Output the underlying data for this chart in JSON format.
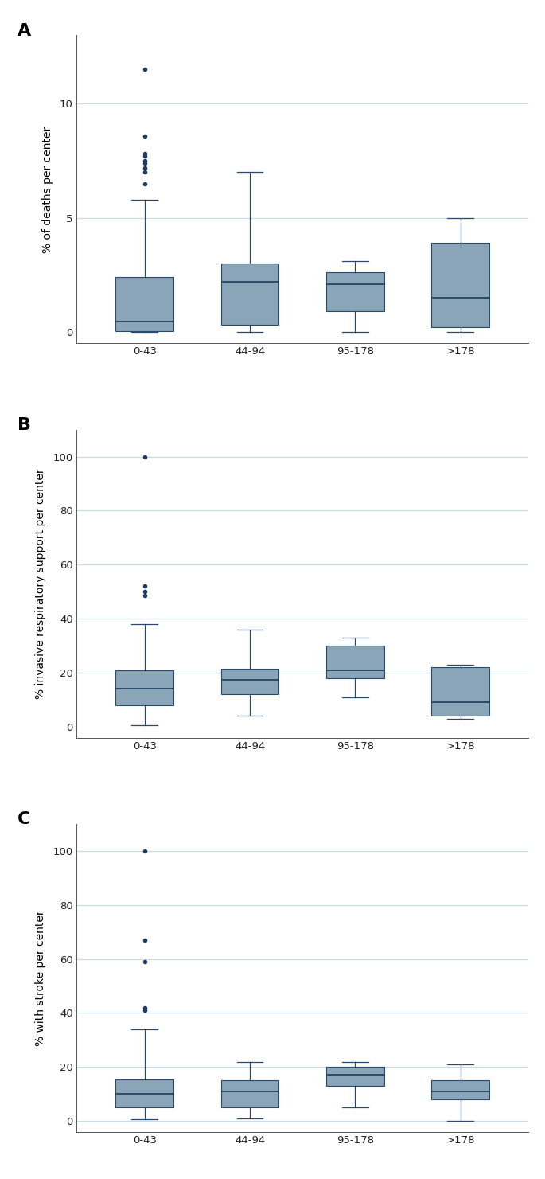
{
  "categories": [
    "0-43",
    "44-94",
    "95-178",
    ">178"
  ],
  "panel_labels": [
    "A",
    "B",
    "C"
  ],
  "ylabels": [
    "% of deaths per center",
    "% invasive respiratory support per center",
    "% with stroke per center"
  ],
  "box_color": "#8aa4b8",
  "box_edge_color": "#2a4a6a",
  "median_color": "#2a4a6a",
  "whisker_color": "#2a4a6a",
  "flier_color": "#1e3a5f",
  "grid_color": "#c8dce8",
  "panels": [
    {
      "ylim": [
        -0.5,
        13.0
      ],
      "yticks": [
        0,
        5,
        10
      ],
      "gridlines": [
        5,
        10
      ],
      "boxes": [
        {
          "q1": 0.05,
          "median": 0.45,
          "q3": 2.4,
          "whislo": 0.0,
          "whishi": 5.8,
          "fliers": [
            6.5,
            7.0,
            7.2,
            7.4,
            7.5,
            7.7,
            7.8,
            8.6,
            11.5
          ]
        },
        {
          "q1": 0.3,
          "median": 2.2,
          "q3": 3.0,
          "whislo": 0.0,
          "whishi": 7.0,
          "fliers": []
        },
        {
          "q1": 0.9,
          "median": 2.1,
          "q3": 2.6,
          "whislo": 0.0,
          "whishi": 3.1,
          "fliers": []
        },
        {
          "q1": 0.2,
          "median": 1.5,
          "q3": 3.9,
          "whislo": 0.0,
          "whishi": 5.0,
          "fliers": []
        }
      ]
    },
    {
      "ylim": [
        -4,
        110
      ],
      "yticks": [
        0,
        20,
        40,
        60,
        80,
        100
      ],
      "gridlines": [
        20,
        40,
        60,
        80,
        100
      ],
      "boxes": [
        {
          "q1": 8.0,
          "median": 14.0,
          "q3": 21.0,
          "whislo": 0.5,
          "whishi": 38.0,
          "fliers": [
            48.5,
            50.0,
            52.0,
            100.0
          ]
        },
        {
          "q1": 12.0,
          "median": 17.5,
          "q3": 21.5,
          "whislo": 4.0,
          "whishi": 36.0,
          "fliers": []
        },
        {
          "q1": 18.0,
          "median": 21.0,
          "q3": 30.0,
          "whislo": 11.0,
          "whishi": 33.0,
          "fliers": []
        },
        {
          "q1": 4.0,
          "median": 9.0,
          "q3": 22.0,
          "whislo": 3.0,
          "whishi": 23.0,
          "fliers": []
        }
      ]
    },
    {
      "ylim": [
        -4,
        110
      ],
      "yticks": [
        0,
        20,
        40,
        60,
        80,
        100
      ],
      "gridlines": [
        0,
        20,
        40,
        60,
        80,
        100
      ],
      "boxes": [
        {
          "q1": 5.0,
          "median": 10.0,
          "q3": 15.5,
          "whislo": 0.5,
          "whishi": 34.0,
          "fliers": [
            41.0,
            42.0,
            59.0,
            67.0,
            100.0
          ]
        },
        {
          "q1": 5.0,
          "median": 11.0,
          "q3": 15.0,
          "whislo": 1.0,
          "whishi": 22.0,
          "fliers": []
        },
        {
          "q1": 13.0,
          "median": 17.0,
          "q3": 20.0,
          "whislo": 5.0,
          "whishi": 22.0,
          "fliers": []
        },
        {
          "q1": 8.0,
          "median": 11.0,
          "q3": 15.0,
          "whislo": 0.0,
          "whishi": 21.0,
          "fliers": []
        }
      ]
    }
  ],
  "background_color": "#ffffff",
  "panel_label_fontsize": 16,
  "axis_label_fontsize": 10,
  "tick_fontsize": 9.5
}
